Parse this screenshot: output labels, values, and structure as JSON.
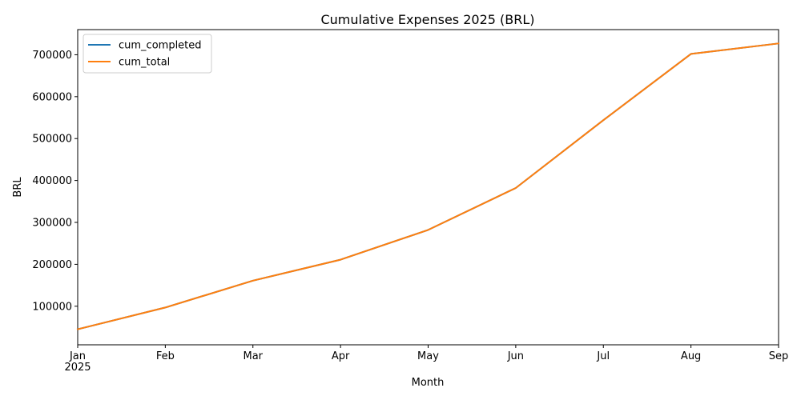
{
  "chart_data": {
    "type": "line",
    "title": "Cumulative Expenses 2025 (BRL)",
    "xlabel": "Month",
    "ylabel": "BRL",
    "x": [
      "2025-01",
      "2025-02",
      "2025-03",
      "2025-04",
      "2025-05",
      "2025-06",
      "2025-07",
      "2025-08",
      "2025-09"
    ],
    "x_tick_labels": [
      "Jan",
      "Feb",
      "Mar",
      "Apr",
      "May",
      "Jun",
      "Jul",
      "Aug",
      "Sep"
    ],
    "x_year_label": "2025",
    "ylim": [
      8000,
      760000
    ],
    "y_ticks": [
      100000,
      200000,
      300000,
      400000,
      500000,
      600000,
      700000
    ],
    "grid": false,
    "legend_position": "top-left",
    "series": [
      {
        "name": "cum_completed",
        "color": "#1f77b4",
        "values": [
          45000,
          97000,
          161000,
          211000,
          282000,
          382000,
          544000,
          702000,
          727000
        ]
      },
      {
        "name": "cum_total",
        "color": "#ff7f0e",
        "values": [
          45000,
          97000,
          161000,
          211000,
          282000,
          382000,
          544000,
          702000,
          727000
        ]
      }
    ]
  }
}
